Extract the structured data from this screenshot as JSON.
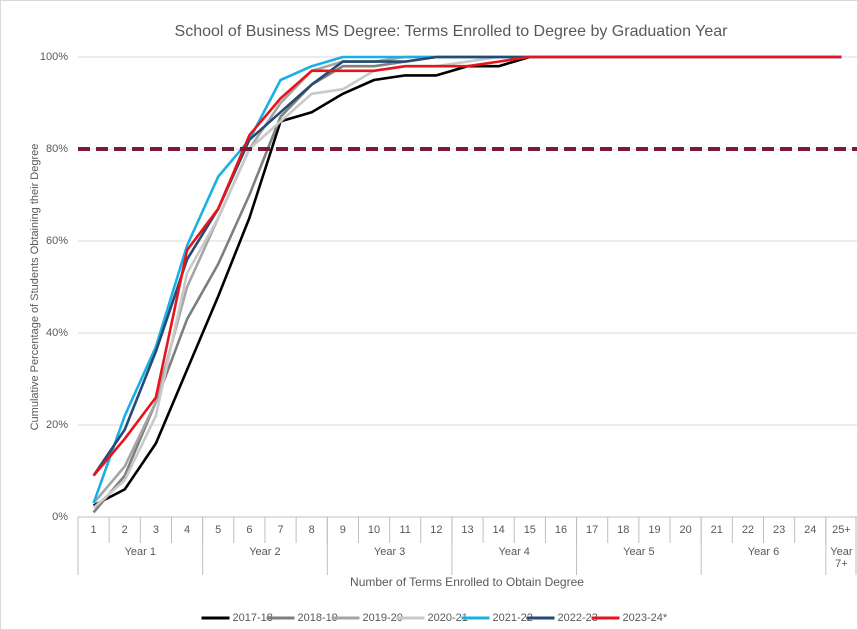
{
  "chart_data": {
    "type": "line",
    "title": "School of Business MS Degree: Terms Enrolled to Degree by Graduation Year",
    "x_label": "Number of Terms Enrolled to Obtain Degree",
    "y_label": "Cumulative Percentage of Students Obtaining their Degree",
    "categories": [
      "1",
      "2",
      "3",
      "4",
      "5",
      "6",
      "7",
      "8",
      "9",
      "10",
      "11",
      "12",
      "13",
      "14",
      "15",
      "16",
      "17",
      "18",
      "19",
      "20",
      "21",
      "22",
      "23",
      "24",
      "25+"
    ],
    "year_groups": [
      {
        "label": "Year 1",
        "size": 4
      },
      {
        "label": "Year 2",
        "size": 4
      },
      {
        "label": "Year 3",
        "size": 4
      },
      {
        "label": "Year 4",
        "size": 4
      },
      {
        "label": "Year 5",
        "size": 4
      },
      {
        "label": "Year 6",
        "size": 4
      },
      {
        "label": "Year 7+",
        "size": 1
      }
    ],
    "ylim": [
      0,
      100
    ],
    "yticks": [
      {
        "value": 0,
        "label": "0%"
      },
      {
        "value": 20,
        "label": "20%"
      },
      {
        "value": 40,
        "label": "40%"
      },
      {
        "value": 60,
        "label": "60%"
      },
      {
        "value": 80,
        "label": "80%"
      },
      {
        "value": 100,
        "label": "100%"
      }
    ],
    "grid": true,
    "reference_line": {
      "value": 80,
      "color": "#7b1a3a"
    },
    "legend": "bottom",
    "series": [
      {
        "name": "2017-18",
        "color": "#000000",
        "values": [
          2.5,
          6,
          16,
          32,
          48,
          65,
          86,
          88,
          92,
          95,
          96,
          96,
          98,
          98,
          100,
          100,
          100,
          100,
          100,
          100,
          100,
          100,
          100,
          100,
          100
        ]
      },
      {
        "name": "2018-19",
        "color": "#7f7f7f",
        "values": [
          1,
          9,
          25,
          43,
          55,
          70,
          87,
          94,
          98,
          98,
          99,
          100,
          100,
          100,
          100,
          100,
          100,
          100,
          100,
          100,
          100,
          100,
          100,
          100,
          100
        ]
      },
      {
        "name": "2019-20",
        "color": "#a5a5a5",
        "values": [
          3,
          11,
          25,
          50,
          65,
          80,
          90,
          97,
          99,
          99,
          100,
          100,
          100,
          100,
          100,
          100,
          100,
          100,
          100,
          100,
          100,
          100,
          100,
          100,
          100
        ]
      },
      {
        "name": "2020-21",
        "color": "#c9c9c9",
        "values": [
          2,
          8,
          22,
          53,
          65,
          80,
          86,
          92,
          93,
          97,
          98,
          98,
          99,
          100,
          100,
          100,
          100,
          100,
          100,
          100,
          100,
          100,
          100,
          100,
          100
        ]
      },
      {
        "name": "2021-22",
        "color": "#1ab0e6",
        "values": [
          3,
          22,
          37,
          59,
          74,
          82,
          95,
          98,
          100,
          100,
          100,
          100,
          100,
          100,
          100,
          100,
          100,
          100,
          100,
          100,
          100,
          100,
          100,
          100,
          100
        ]
      },
      {
        "name": "2022-23",
        "color": "#264b73",
        "values": [
          9,
          19,
          36,
          56,
          67,
          82,
          88,
          94,
          99,
          99,
          99,
          100,
          100,
          100,
          100,
          100,
          100,
          100,
          100,
          100,
          100,
          100,
          100,
          100,
          100
        ]
      },
      {
        "name": "2023-24*",
        "color": "#e8141b",
        "values": [
          9,
          17,
          26,
          58,
          67,
          83,
          91,
          97,
          97,
          97,
          98,
          98,
          98,
          99,
          100,
          100,
          100,
          100,
          100,
          100,
          100,
          100,
          100,
          100,
          100
        ]
      }
    ]
  }
}
